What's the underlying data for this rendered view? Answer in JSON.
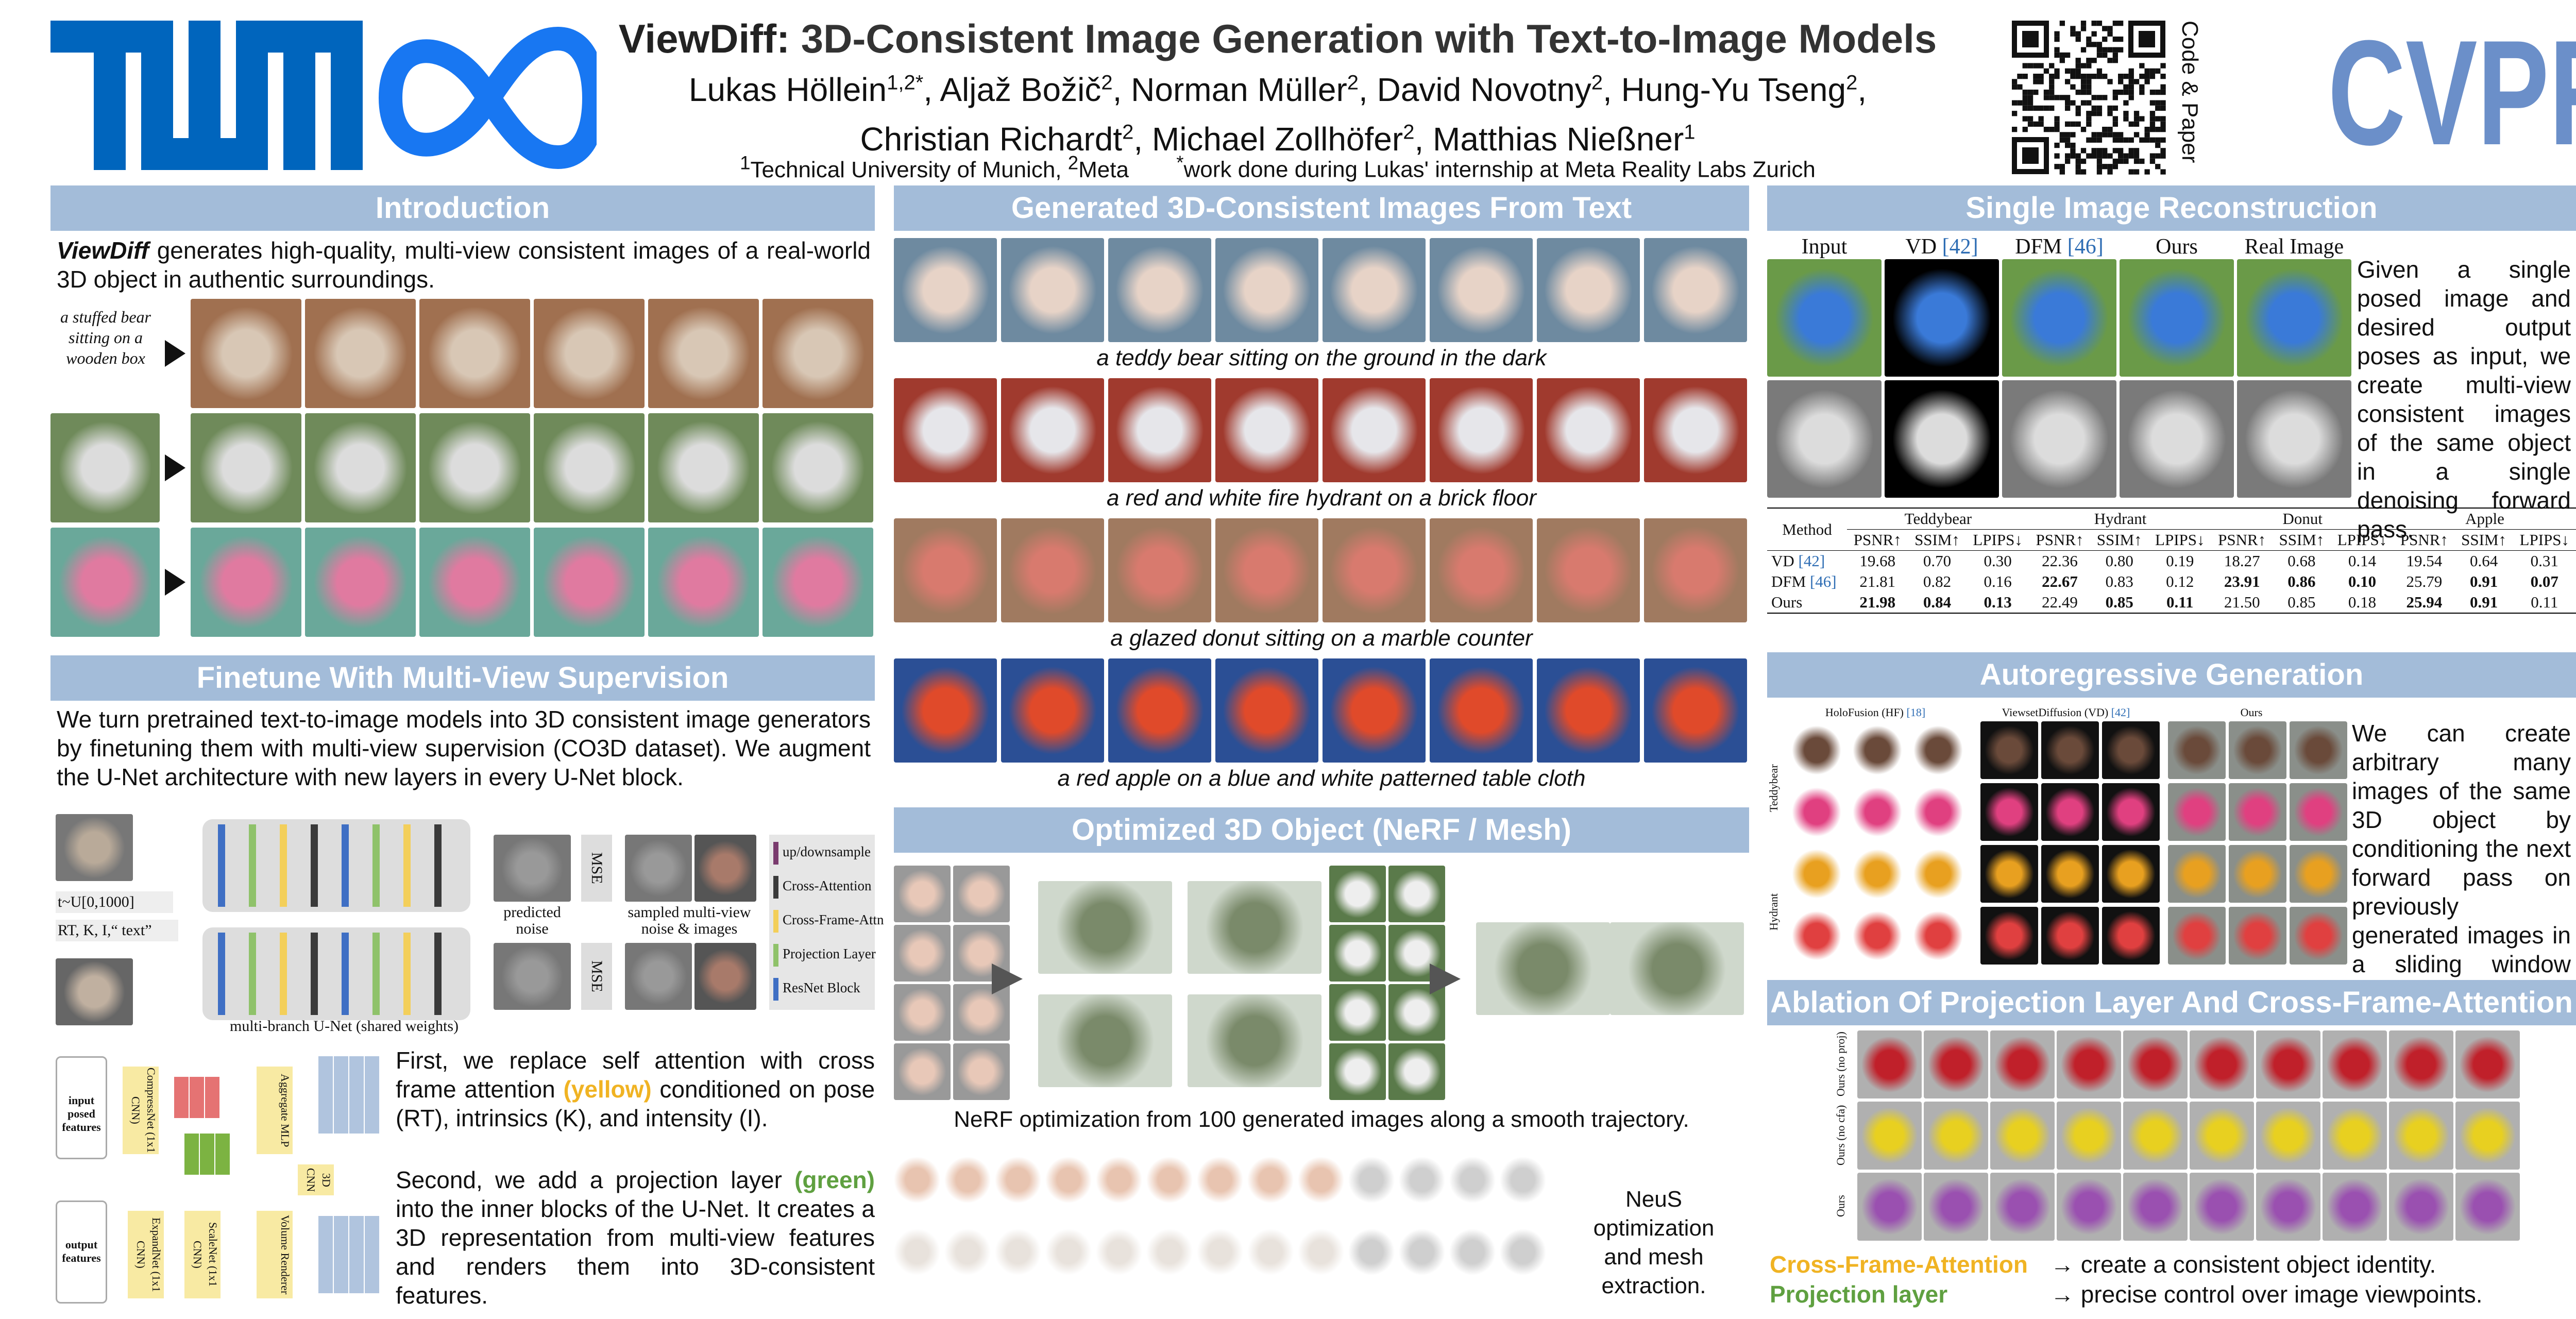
{
  "header": {
    "title_bold": "ViewDiff:",
    "title": "3D-Consistent Image Generation with Text-to-Image Models",
    "authors": [
      {
        "name": "Lukas Höllein",
        "sup": "1,2*",
        "sep": ","
      },
      {
        "name": "Aljaž Božič",
        "sup": "2",
        "sep": ","
      },
      {
        "name": "Norman Müller",
        "sup": "2",
        "sep": ","
      },
      {
        "name": "David Novotny",
        "sup": "2",
        "sep": ","
      },
      {
        "name": "Hung-Yu Tseng",
        "sup": "2",
        "sep": ","
      },
      {
        "name": "Christian Richardt",
        "sup": "2",
        "sep": ","
      },
      {
        "name": "Michael Zollhöfer",
        "sup": "2",
        "sep": ","
      },
      {
        "name": "Matthias Nießner",
        "sup": "1"
      }
    ],
    "affiliations": [
      {
        "sup": "1",
        "name": "Technical University of Munich,"
      },
      {
        "sup": "2",
        "name": "Meta"
      }
    ],
    "note": {
      "sup": "*",
      "text": "work done during Lukas' internship at Meta Reality Labs Zurich"
    },
    "qr_label": "Code & Paper",
    "conference": "CVPR"
  },
  "intro": {
    "title": "Introduction",
    "lead": "ViewDiff",
    "text": "generates high-quality, multi-view consistent images of a real-world 3D object in authentic surroundings.",
    "prompt": "a stuffed bear sitting on a wooden box"
  },
  "finetune": {
    "title": "Finetune With Multi-View Supervision",
    "text": "We turn pretrained text-to-image models into 3D consistent image generators by finetuning them with multi-view supervision (CO3D dataset). We augment the U-Net architecture with new layers in every U-Net block.",
    "diagram": {
      "timestep": "t~U[0,1000]",
      "condition": "RT, K, I,“ text”",
      "predicted": "predicted noise",
      "loss": [
        "MSE",
        "MSE"
      ],
      "sampled": "sampled multi-view noise & images",
      "unet": "multi-branch U-Net (shared weights)",
      "legend": [
        {
          "label": "up/downsample",
          "color": "#7a3b6e"
        },
        {
          "label": "Cross-Attention",
          "color": "#3a3a3a"
        },
        {
          "label": "Cross-Frame-Attn",
          "color": "#f3cf5a"
        },
        {
          "label": "Projection Layer",
          "color": "#8fc26a"
        },
        {
          "label": "ResNet Block",
          "color": "#3f6fc4"
        }
      ]
    },
    "proj_diagram": {
      "input": "input posed features",
      "compress": "CompressNet (1x1 CNN)",
      "aggregate": "Aggregate MLP",
      "cnn": "3D CNN",
      "output": "output features",
      "expand": "ExpandNet (1x1 CNN)",
      "scale": "ScaleNet (1x1 CNN)",
      "renderer": "Volume Renderer"
    },
    "p1": {
      "before": "First, we replace self attention with cross frame attention",
      "highlight": "(yellow)",
      "color": "#f0b323",
      "after": "conditioned on pose (RT), intrinsics (K), and intensity (I)."
    },
    "p2": {
      "before": "Second, we add a projection layer",
      "highlight": "(green)",
      "color": "#5fa040",
      "after": "into the inner blocks of the U-Net. It creates a 3D representation from multi-view features and renders them into 3D-consistent features."
    }
  },
  "generated": {
    "title": "Generated 3D-Consistent Images From Text",
    "captions": [
      "a teddy bear sitting on the ground in the dark",
      "a red and white fire hydrant on a brick floor",
      "a glazed donut sitting on a marble counter",
      "a red apple on a blue and white patterned table cloth"
    ]
  },
  "optimized": {
    "title": "Optimized 3D Object (NeRF / Mesh)",
    "caption": "NeRF optimization from 100 generated images along a smooth trajectory.",
    "neus": "NeuS optimization and mesh extraction."
  },
  "single": {
    "title": "Single Image Reconstruction",
    "columns": [
      {
        "text": "Input"
      },
      {
        "text": "VD",
        "cite": "[42]"
      },
      {
        "text": "DFM",
        "cite": "[46]"
      },
      {
        "text": "Ours"
      },
      {
        "text": "Real Image"
      }
    ],
    "text": "Given a single posed image and desired output poses as input, we create multi-view consistent images of the same object in a single denoising forward pass."
  },
  "table": {
    "method": "Method",
    "groups": [
      "Teddybear",
      "Hydrant",
      "Donut",
      "Apple"
    ],
    "metrics": [
      "PSNR↑",
      "SSIM↑",
      "LPIPS↓"
    ],
    "rows": [
      {
        "method": "VD",
        "cite": "[42]",
        "values": [
          "19.68",
          "0.70",
          "0.30",
          "22.36",
          "0.80",
          "0.19",
          "18.27",
          "0.68",
          "0.14",
          "19.54",
          "0.64",
          "0.31"
        ],
        "bold": []
      },
      {
        "method": "DFM",
        "cite": "[46]",
        "values": [
          "21.81",
          "0.82",
          "0.16",
          "22.67",
          "0.83",
          "0.12",
          "23.91",
          "0.86",
          "0.10",
          "25.79",
          "0.91",
          "0.07"
        ],
        "bold": [
          3,
          6,
          7,
          8,
          10,
          11
        ]
      },
      {
        "method": "Ours",
        "values": [
          "21.98",
          "0.84",
          "0.13",
          "22.49",
          "0.85",
          "0.11",
          "21.50",
          "0.85",
          "0.18",
          "25.94",
          "0.91",
          "0.11"
        ],
        "bold": [
          0,
          1,
          2,
          4,
          5,
          9,
          10
        ]
      }
    ]
  },
  "autoregressive": {
    "title": "Autoregressive Generation",
    "methods": [
      {
        "text": "HoloFusion (HF)",
        "cite": "[18]"
      },
      {
        "text": "ViewsetDiffusion (VD)",
        "cite": "[42]"
      },
      {
        "text": "Ours"
      }
    ],
    "rows": [
      "Teddybear",
      "Hydrant"
    ],
    "text": "We can create arbitrary many images of the same 3D object by conditioning the next forward pass on previously generated images in a sliding window fashion."
  },
  "ablation": {
    "title": "Ablation Of Projection Layer And Cross-Frame-Attention",
    "rows": [
      "Ours (no proj)",
      "Ours (no cfa)",
      "Ours"
    ],
    "findings": [
      {
        "term": "Cross-Frame-Attention",
        "color": "#f0b323",
        "text": "→ create a consistent object identity."
      },
      {
        "term": "Projection layer",
        "color": "#5fa040",
        "text": "→ precise control over image viewpoints."
      }
    ]
  }
}
